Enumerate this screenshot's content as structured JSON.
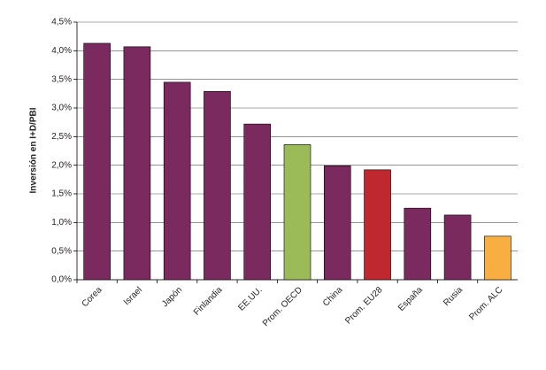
{
  "chart_data": {
    "type": "bar",
    "y_label": "Inversión en I+D/PBI",
    "categories": [
      "Corea",
      "Israel",
      "Japón",
      "Finlandia",
      "EE.UU.",
      "Prom. OECD",
      "China",
      "Prom. EU28",
      "España",
      "Rusia",
      "Prom. ALC"
    ],
    "values": [
      4.13,
      4.07,
      3.45,
      3.29,
      2.72,
      2.36,
      1.99,
      1.92,
      1.25,
      1.13,
      0.76
    ],
    "colors": [
      "#7a2a5e",
      "#7a2a5e",
      "#7a2a5e",
      "#7a2a5e",
      "#7a2a5e",
      "#9bbb59",
      "#7a2a5e",
      "#c0282f",
      "#7a2a5e",
      "#7a2a5e",
      "#f9ae42"
    ],
    "ylim": [
      0,
      4.5
    ],
    "yticks": [
      {
        "value": 0,
        "label": "0,0%"
      },
      {
        "value": 0.5,
        "label": "0,5%"
      },
      {
        "value": 1,
        "label": "1,0%"
      },
      {
        "value": 1.5,
        "label": "1,5%"
      },
      {
        "value": 2,
        "label": "2,0%"
      },
      {
        "value": 2.5,
        "label": "2,5%"
      },
      {
        "value": 3,
        "label": "3,0%"
      },
      {
        "value": 3.5,
        "label": "3,5%"
      },
      {
        "value": 4,
        "label": "4,0%"
      },
      {
        "value": 4.5,
        "label": "4,5%"
      }
    ],
    "grid": true
  }
}
